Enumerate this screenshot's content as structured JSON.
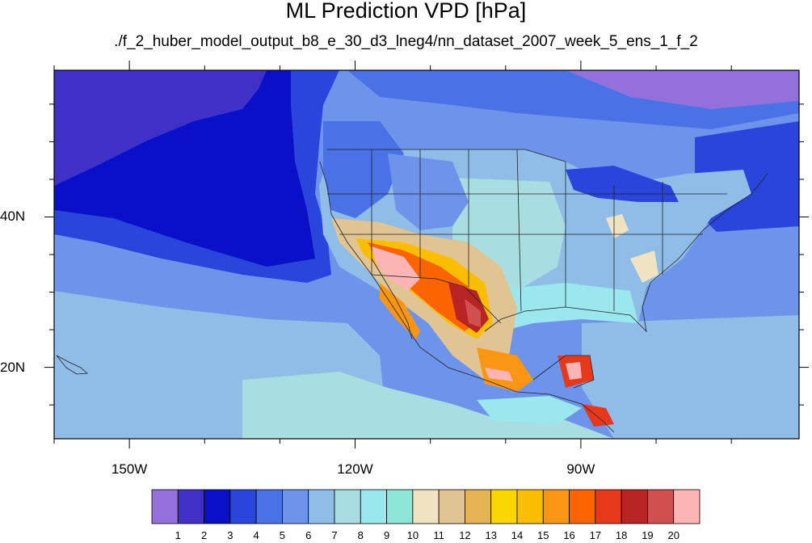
{
  "title": "ML Prediction VPD [hPa]",
  "subtitle": "./f_2_huber_model_output_b8_e_30_d3_lneg4/nn_dataset_2007_week_5_ens_1_f_2",
  "map": {
    "projection": "cylindrical-equidistant",
    "lon_range": [
      -160,
      -61
    ],
    "lat_range": [
      10.5,
      59.5
    ],
    "lon_labels": [
      {
        "lon": -150,
        "text": "150W"
      },
      {
        "lon": -120,
        "text": "120W"
      },
      {
        "lon": -90,
        "text": "90W"
      }
    ],
    "lat_labels": [
      {
        "lat": 40,
        "text": "40N"
      },
      {
        "lat": 20,
        "text": "20N"
      }
    ]
  },
  "colorbar": {
    "colors": [
      "#9370db",
      "#4030c8",
      "#0a10c8",
      "#2a45dc",
      "#4a72e6",
      "#6e93ea",
      "#8fbde8",
      "#a8dde2",
      "#9ae8ee",
      "#8ee6d8",
      "#f0e3c2",
      "#e0c494",
      "#e6b454",
      "#fad700",
      "#fbbd00",
      "#fb9614",
      "#fb6400",
      "#e8381c",
      "#b82424",
      "#d05050",
      "#fcb4b4"
    ],
    "labels": [
      "1",
      "2",
      "3",
      "4",
      "5",
      "6",
      "7",
      "8",
      "9",
      "10",
      "11",
      "12",
      "13",
      "14",
      "15",
      "16",
      "17",
      "18",
      "19",
      "20"
    ]
  }
}
